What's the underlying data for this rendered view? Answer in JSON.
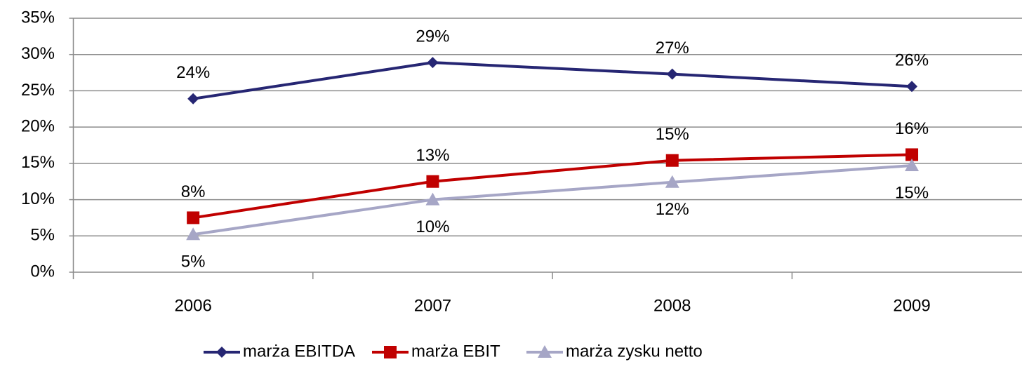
{
  "chart_data": {
    "type": "line",
    "categories": [
      "2006",
      "2007",
      "2008",
      "2009"
    ],
    "series": [
      {
        "name": "marża EBITDA",
        "color": "#262673",
        "marker": "diamond",
        "label_position": "above",
        "values": [
          23.9,
          28.9,
          27.3,
          25.6
        ],
        "value_labels": [
          "24%",
          "29%",
          "27%",
          "26%"
        ]
      },
      {
        "name": "marża EBIT",
        "color": "#c00000",
        "marker": "square",
        "label_position": "above",
        "values": [
          7.5,
          12.5,
          15.4,
          16.2
        ],
        "value_labels": [
          "8%",
          "13%",
          "15%",
          "16%"
        ]
      },
      {
        "name": "marża zysku netto",
        "color": "#a6a6c6",
        "marker": "triangle",
        "label_position": "below",
        "values": [
          5.2,
          10.0,
          12.4,
          14.7
        ],
        "value_labels": [
          "5%",
          "10%",
          "12%",
          "15%"
        ]
      }
    ],
    "ylim": [
      0,
      35
    ],
    "yticks": [
      {
        "value": 0,
        "label": "0%"
      },
      {
        "value": 5,
        "label": "5%"
      },
      {
        "value": 10,
        "label": "10%"
      },
      {
        "value": 15,
        "label": "15%"
      },
      {
        "value": 20,
        "label": "20%"
      },
      {
        "value": 25,
        "label": "25%"
      },
      {
        "value": 30,
        "label": "30%"
      },
      {
        "value": 35,
        "label": "35%"
      }
    ],
    "grid": true,
    "legend": "bottom"
  }
}
